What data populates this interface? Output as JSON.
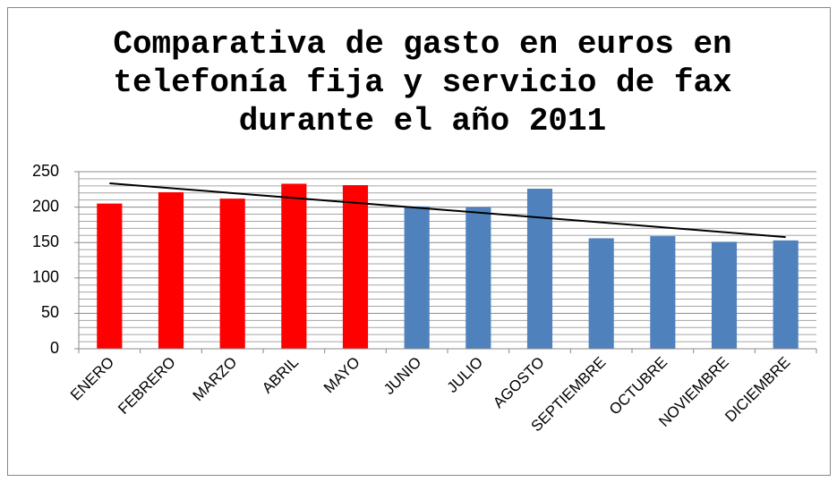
{
  "chart_data": {
    "type": "bar",
    "title": "Comparativa de gasto en euros en telefonía fija y servicio de fax durante el año 2011",
    "categories": [
      "ENERO",
      "FEBRERO",
      "MARZO",
      "ABRIL",
      "MAYO",
      "JUNIO",
      "JULIO",
      "AGOSTO",
      "SEPTIEMBRE",
      "OCTUBRE",
      "NOVIEMBRE",
      "DICIEMBRE"
    ],
    "values": [
      205,
      221,
      212,
      233,
      231,
      201,
      200,
      226,
      156,
      159,
      151,
      153
    ],
    "colors": [
      "#ff0000",
      "#ff0000",
      "#ff0000",
      "#ff0000",
      "#ff0000",
      "#4f81bd",
      "#4f81bd",
      "#4f81bd",
      "#4f81bd",
      "#4f81bd",
      "#4f81bd",
      "#4f81bd"
    ],
    "ylim": [
      0,
      250
    ],
    "yticks": [
      0,
      50,
      100,
      150,
      200,
      250
    ],
    "grid": true,
    "trendline": "linear"
  }
}
